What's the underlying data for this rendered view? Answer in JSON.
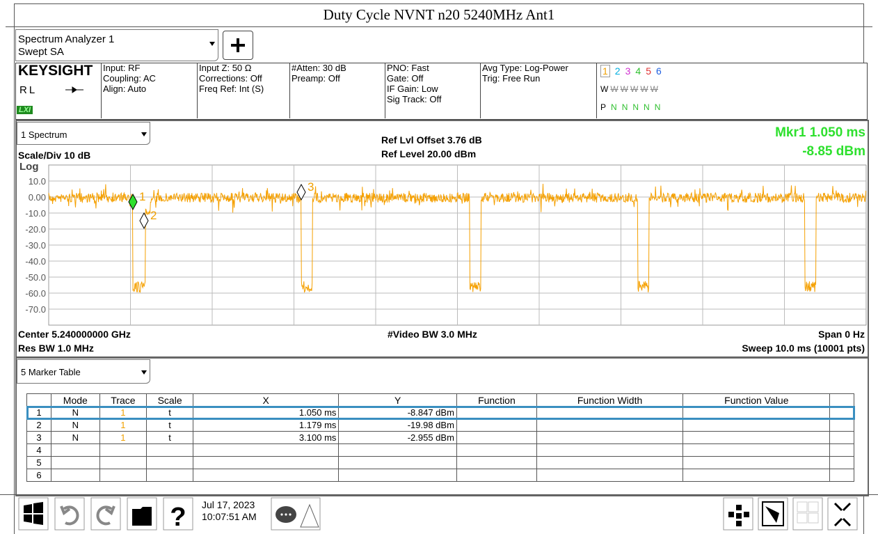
{
  "title": "Duty Cycle NVNT n20 5240MHz Ant1",
  "toolbar": {
    "analyzer": "Spectrum Analyzer 1",
    "mode": "Swept SA"
  },
  "info": {
    "brand": "KEYSIGHT",
    "rl": "RL",
    "lxi": "LXI",
    "columns": [
      [
        "Input: RF",
        "Coupling: AC",
        "Align: Auto"
      ],
      [
        "Input Z: 50 Ω",
        "Corrections: Off",
        "Freq Ref: Int (S)"
      ],
      [
        "#Atten: 30 dB",
        "Preamp: Off"
      ],
      [
        "PNO: Fast",
        "Gate: Off",
        "IF Gain: Low",
        "Sig Track: Off"
      ],
      [
        "Avg Type: Log-Power",
        "Trig: Free Run"
      ]
    ],
    "traces": [
      "1",
      "2",
      "3",
      "4",
      "5",
      "6"
    ],
    "w_row": [
      "W",
      "W",
      "W",
      "W",
      "W",
      "W"
    ],
    "p_row": [
      "P",
      "N",
      "N",
      "N",
      "N",
      "N"
    ]
  },
  "panel": {
    "window": "1 Spectrum",
    "ref_offset": "Ref Lvl Offset 3.76 dB",
    "ref_level": "Ref Level 20.00 dBm",
    "marker_x": "Mkr1  1.050 ms",
    "marker_y": "-8.85 dBm",
    "scale": "Scale/Div 10 dB",
    "log": "Log",
    "y_labels": [
      "10.0",
      "0.00",
      "-10.0",
      "-20.0",
      "-30.0",
      "-40.0",
      "-50.0",
      "-60.0",
      "-70.0"
    ],
    "markers": [
      "1",
      "2",
      "3"
    ],
    "center": "Center 5.240000000 GHz",
    "res_bw": "Res BW 1.0 MHz",
    "video_bw": "#Video BW 3.0 MHz",
    "span": "Span 0 Hz",
    "sweep": "Sweep 10.0 ms (10001 pts)"
  },
  "table": {
    "window": "5 Marker Table",
    "header": [
      "Mode",
      "Trace",
      "Scale",
      "X",
      "Y",
      "Function",
      "Function Width",
      "Function Value"
    ],
    "rows": [
      [
        "1",
        "N",
        "1",
        "t",
        "1.050 ms",
        "-8.847 dBm"
      ],
      [
        "2",
        "N",
        "1",
        "t",
        "1.179 ms",
        "-19.98 dBm"
      ],
      [
        "3",
        "N",
        "1",
        "t",
        "3.100 ms",
        "-2.955 dBm"
      ],
      [
        "4"
      ],
      [
        "5"
      ],
      [
        "6"
      ]
    ]
  },
  "taskbar": {
    "date": "Jul 17, 2023",
    "time": "10:07:51 AM"
  }
}
